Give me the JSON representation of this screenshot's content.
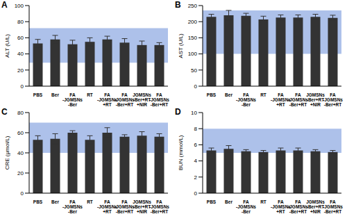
{
  "chart_data": [
    {
      "type": "bar",
      "panel": "A",
      "y_label": "ALT (U/L)",
      "categories": [
        "PBS",
        "Ber",
        "FA-JGMSNs-Ber",
        "RT",
        "FA-JGMSNs+RT",
        "FA-JGMSNs-Ber+RT",
        "JGMSNs-Ber+RT+NIR",
        "FA-JGMSNs-Ber+RT+NIR"
      ],
      "values": [
        53,
        58,
        52,
        55,
        58,
        54,
        51,
        51
      ],
      "errors": [
        5,
        5,
        5,
        5,
        4,
        5,
        5,
        3
      ],
      "reference_range": [
        29,
        72
      ],
      "range_color": "#9fb6e6",
      "color": "#333333",
      "ylim": [
        0,
        100
      ],
      "yticks": [
        0,
        20,
        40,
        60,
        80,
        100
      ],
      "grid": false
    },
    {
      "type": "bar",
      "panel": "B",
      "y_label": "AST (U/L)",
      "categories": [
        "PBS",
        "Ber",
        "FA-JGMSNs-Ber",
        "RT",
        "FA-JGMSNs+RT",
        "FA-JGMSNs-Ber+RT",
        "JGMSNs-Ber+RT+NIR",
        "FA-JGMSNs-Ber+RT+NIR"
      ],
      "values": [
        215,
        220,
        218,
        207,
        213,
        213,
        215,
        212
      ],
      "errors": [
        8,
        15,
        8,
        10,
        8,
        8,
        8,
        8
      ],
      "reference_range": [
        100,
        235
      ],
      "range_color": "#9fb6e6",
      "color": "#333333",
      "ylim": [
        0,
        250
      ],
      "yticks": [
        0,
        50,
        100,
        150,
        200,
        250
      ],
      "grid": false
    },
    {
      "type": "bar",
      "panel": "C",
      "y_label": "CRE (μmol/L)",
      "categories": [
        "PBS",
        "Ber",
        "FA-JGMSNs-Ber",
        "RT",
        "FA-JGMSNs+RT",
        "FA-JGMSNs-Ber+RT",
        "JGMSNs-Ber+RT+NIR",
        "FA-JGMSNs-Ber+RT+NIR"
      ],
      "values": [
        53,
        54,
        60,
        53,
        60,
        56,
        57,
        56
      ],
      "errors": [
        4,
        5,
        2,
        4,
        5,
        2,
        4,
        3
      ],
      "reference_range": [
        40,
        70
      ],
      "range_color": "#9fb6e6",
      "color": "#333333",
      "ylim": [
        0,
        80
      ],
      "yticks": [
        0,
        20,
        40,
        60,
        80
      ],
      "grid": false
    },
    {
      "type": "bar",
      "panel": "D",
      "y_label": "BUN (mmol/L)",
      "categories": [
        "PBS",
        "Ber",
        "FA-JGMSNs-Ber",
        "RT",
        "FA-JGMSNs+RT",
        "FA-JGMSNs-Ber+RT",
        "JGMSNs-Ber+RT+NIR",
        "FA-JGMSNs-Ber+RT+NIR"
      ],
      "values": [
        5.3,
        5.5,
        5.2,
        5.1,
        5.3,
        5.3,
        5.2,
        5.1
      ],
      "errors": [
        0.3,
        0.4,
        0.2,
        0.2,
        0.3,
        0.3,
        0.2,
        0.2
      ],
      "reference_range": [
        5,
        8
      ],
      "range_color": "#9fb6e6",
      "color": "#333333",
      "ylim": [
        0,
        10
      ],
      "yticks": [
        0,
        2,
        4,
        6,
        8,
        10
      ],
      "grid": false
    }
  ]
}
